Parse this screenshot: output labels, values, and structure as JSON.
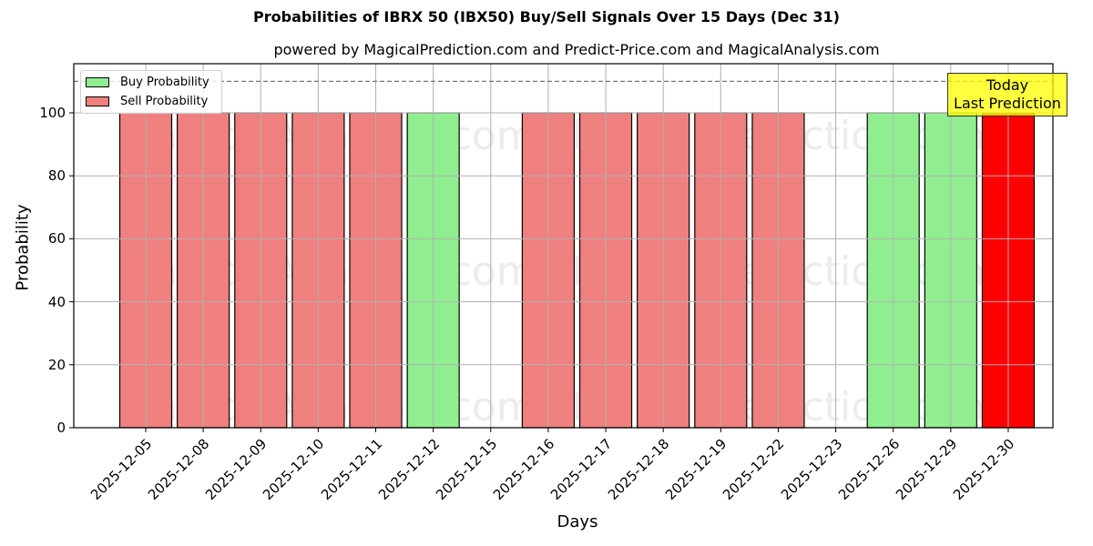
{
  "title": "Probabilities of IBRX 50 (IBX50) Buy/Sell Signals Over 15 Days (Dec 31)",
  "subtitle": "powered by MagicalPrediction.com and Predict-Price.com and MagicalAnalysis.com",
  "legend": {
    "buy_label": "Buy Probability",
    "sell_label": "Sell Probability"
  },
  "annotation": {
    "line1": "Today",
    "line2": "Last Prediction"
  },
  "watermarks": [
    "MagicalAnalysis.com",
    "MagicalPrediction.com"
  ],
  "colors": {
    "buy": "#90ee90",
    "sell": "#f08080",
    "today": "#ff0000",
    "annotation_bg": "#ffff00"
  },
  "chart_data": {
    "type": "bar",
    "title": "Probabilities of IBRX 50 (IBX50) Buy/Sell Signals Over 15 Days (Dec 31)",
    "subtitle": "powered by MagicalPrediction.com and Predict-Price.com and MagicalAnalysis.com",
    "xlabel": "Days",
    "ylabel": "Probability",
    "ylim": [
      0,
      115
    ],
    "yticks": [
      0,
      20,
      40,
      60,
      80,
      100
    ],
    "grid": true,
    "legend_position": "upper left",
    "reference_line": {
      "y": 110,
      "style": "dashed"
    },
    "categories": [
      "2025-12-05",
      "2025-12-08",
      "2025-12-09",
      "2025-12-10",
      "2025-12-11",
      "2025-12-12",
      "2025-12-15",
      "2025-12-16",
      "2025-12-17",
      "2025-12-18",
      "2025-12-19",
      "2025-12-22",
      "2025-12-23",
      "2025-12-26",
      "2025-12-29",
      "2025-12-30"
    ],
    "series": [
      {
        "name": "Buy Probability",
        "values": [
          0,
          0,
          0,
          0,
          0,
          100,
          0,
          0,
          0,
          0,
          0,
          0,
          0,
          100,
          100,
          0
        ]
      },
      {
        "name": "Sell Probability",
        "values": [
          100,
          100,
          100,
          100,
          100,
          0,
          0,
          100,
          100,
          100,
          100,
          100,
          0,
          0,
          0,
          100
        ]
      }
    ],
    "highlight": {
      "category": "2025-12-30",
      "label": "Today Last Prediction",
      "color": "#ff0000"
    }
  }
}
